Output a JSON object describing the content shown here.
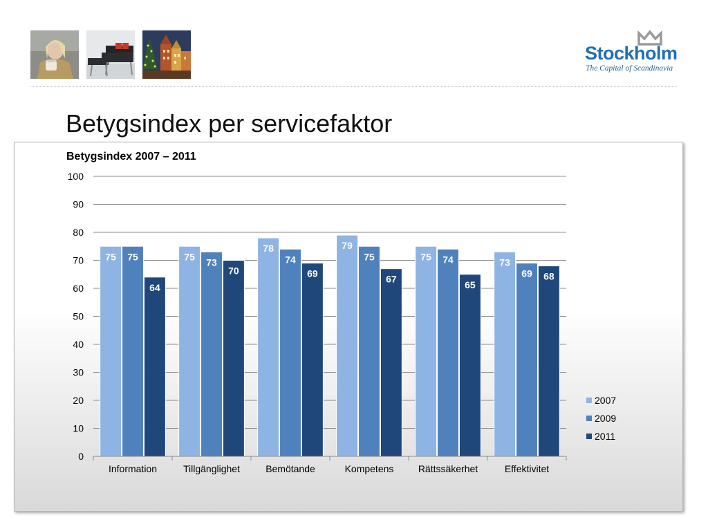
{
  "slide": {
    "title": "Betygsindex per servicefaktor"
  },
  "header": {
    "photos": [
      {
        "name": "woman-with-mug-photo"
      },
      {
        "name": "lounge-chair-photo"
      },
      {
        "name": "christmas-old-town-photo"
      }
    ],
    "logo": {
      "name": "Stockholm",
      "tagline": "The Capital of Scandinavia",
      "crown_color": "#9a9a9a",
      "brand_color": "#1f6fb4"
    }
  },
  "chart_data": {
    "type": "bar",
    "title": "Betygsindex 2007 – 2011",
    "categories": [
      "Information",
      "Tillgänglighet",
      "Bemötande",
      "Kompetens",
      "Rättssäkerhet",
      "Effektivitet"
    ],
    "series": [
      {
        "name": "2007",
        "color": "#8eb4e3",
        "label_color": "#ffffff",
        "values": [
          75,
          75,
          78,
          79,
          75,
          73
        ]
      },
      {
        "name": "2009",
        "color": "#4f81bd",
        "label_color": "#ffffff",
        "values": [
          75,
          73,
          74,
          75,
          74,
          69
        ]
      },
      {
        "name": "2011",
        "color": "#1f477a",
        "label_color": "#ffffff",
        "values": [
          64,
          70,
          69,
          67,
          65,
          68
        ]
      }
    ],
    "ylim": [
      0,
      100
    ],
    "yticks": [
      0,
      10,
      20,
      30,
      40,
      50,
      60,
      70,
      80,
      90,
      100
    ],
    "grid": true,
    "legend": "right",
    "data_labels": true
  }
}
